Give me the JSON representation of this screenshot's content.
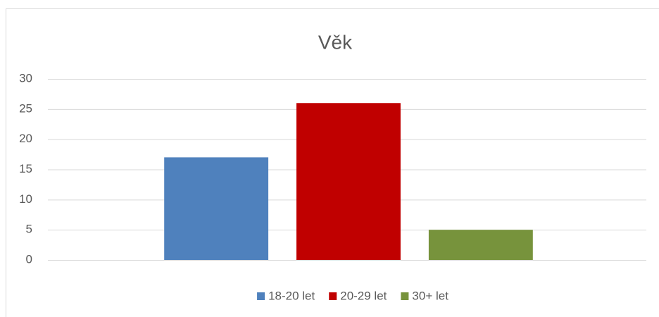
{
  "chart_data": {
    "type": "bar",
    "title": "Věk",
    "categories": [
      null
    ],
    "series": [
      {
        "name": "18-20 let",
        "color": "#4f81bd",
        "values": [
          17
        ]
      },
      {
        "name": "20-29 let",
        "color": "#c00000",
        "values": [
          26
        ]
      },
      {
        "name": "30+ let",
        "color": "#77933c",
        "values": [
          5
        ]
      }
    ],
    "ylim": [
      0,
      30
    ],
    "yticks": [
      0,
      5,
      10,
      15,
      20,
      25,
      30
    ],
    "grid": true,
    "legend": "bottom"
  }
}
